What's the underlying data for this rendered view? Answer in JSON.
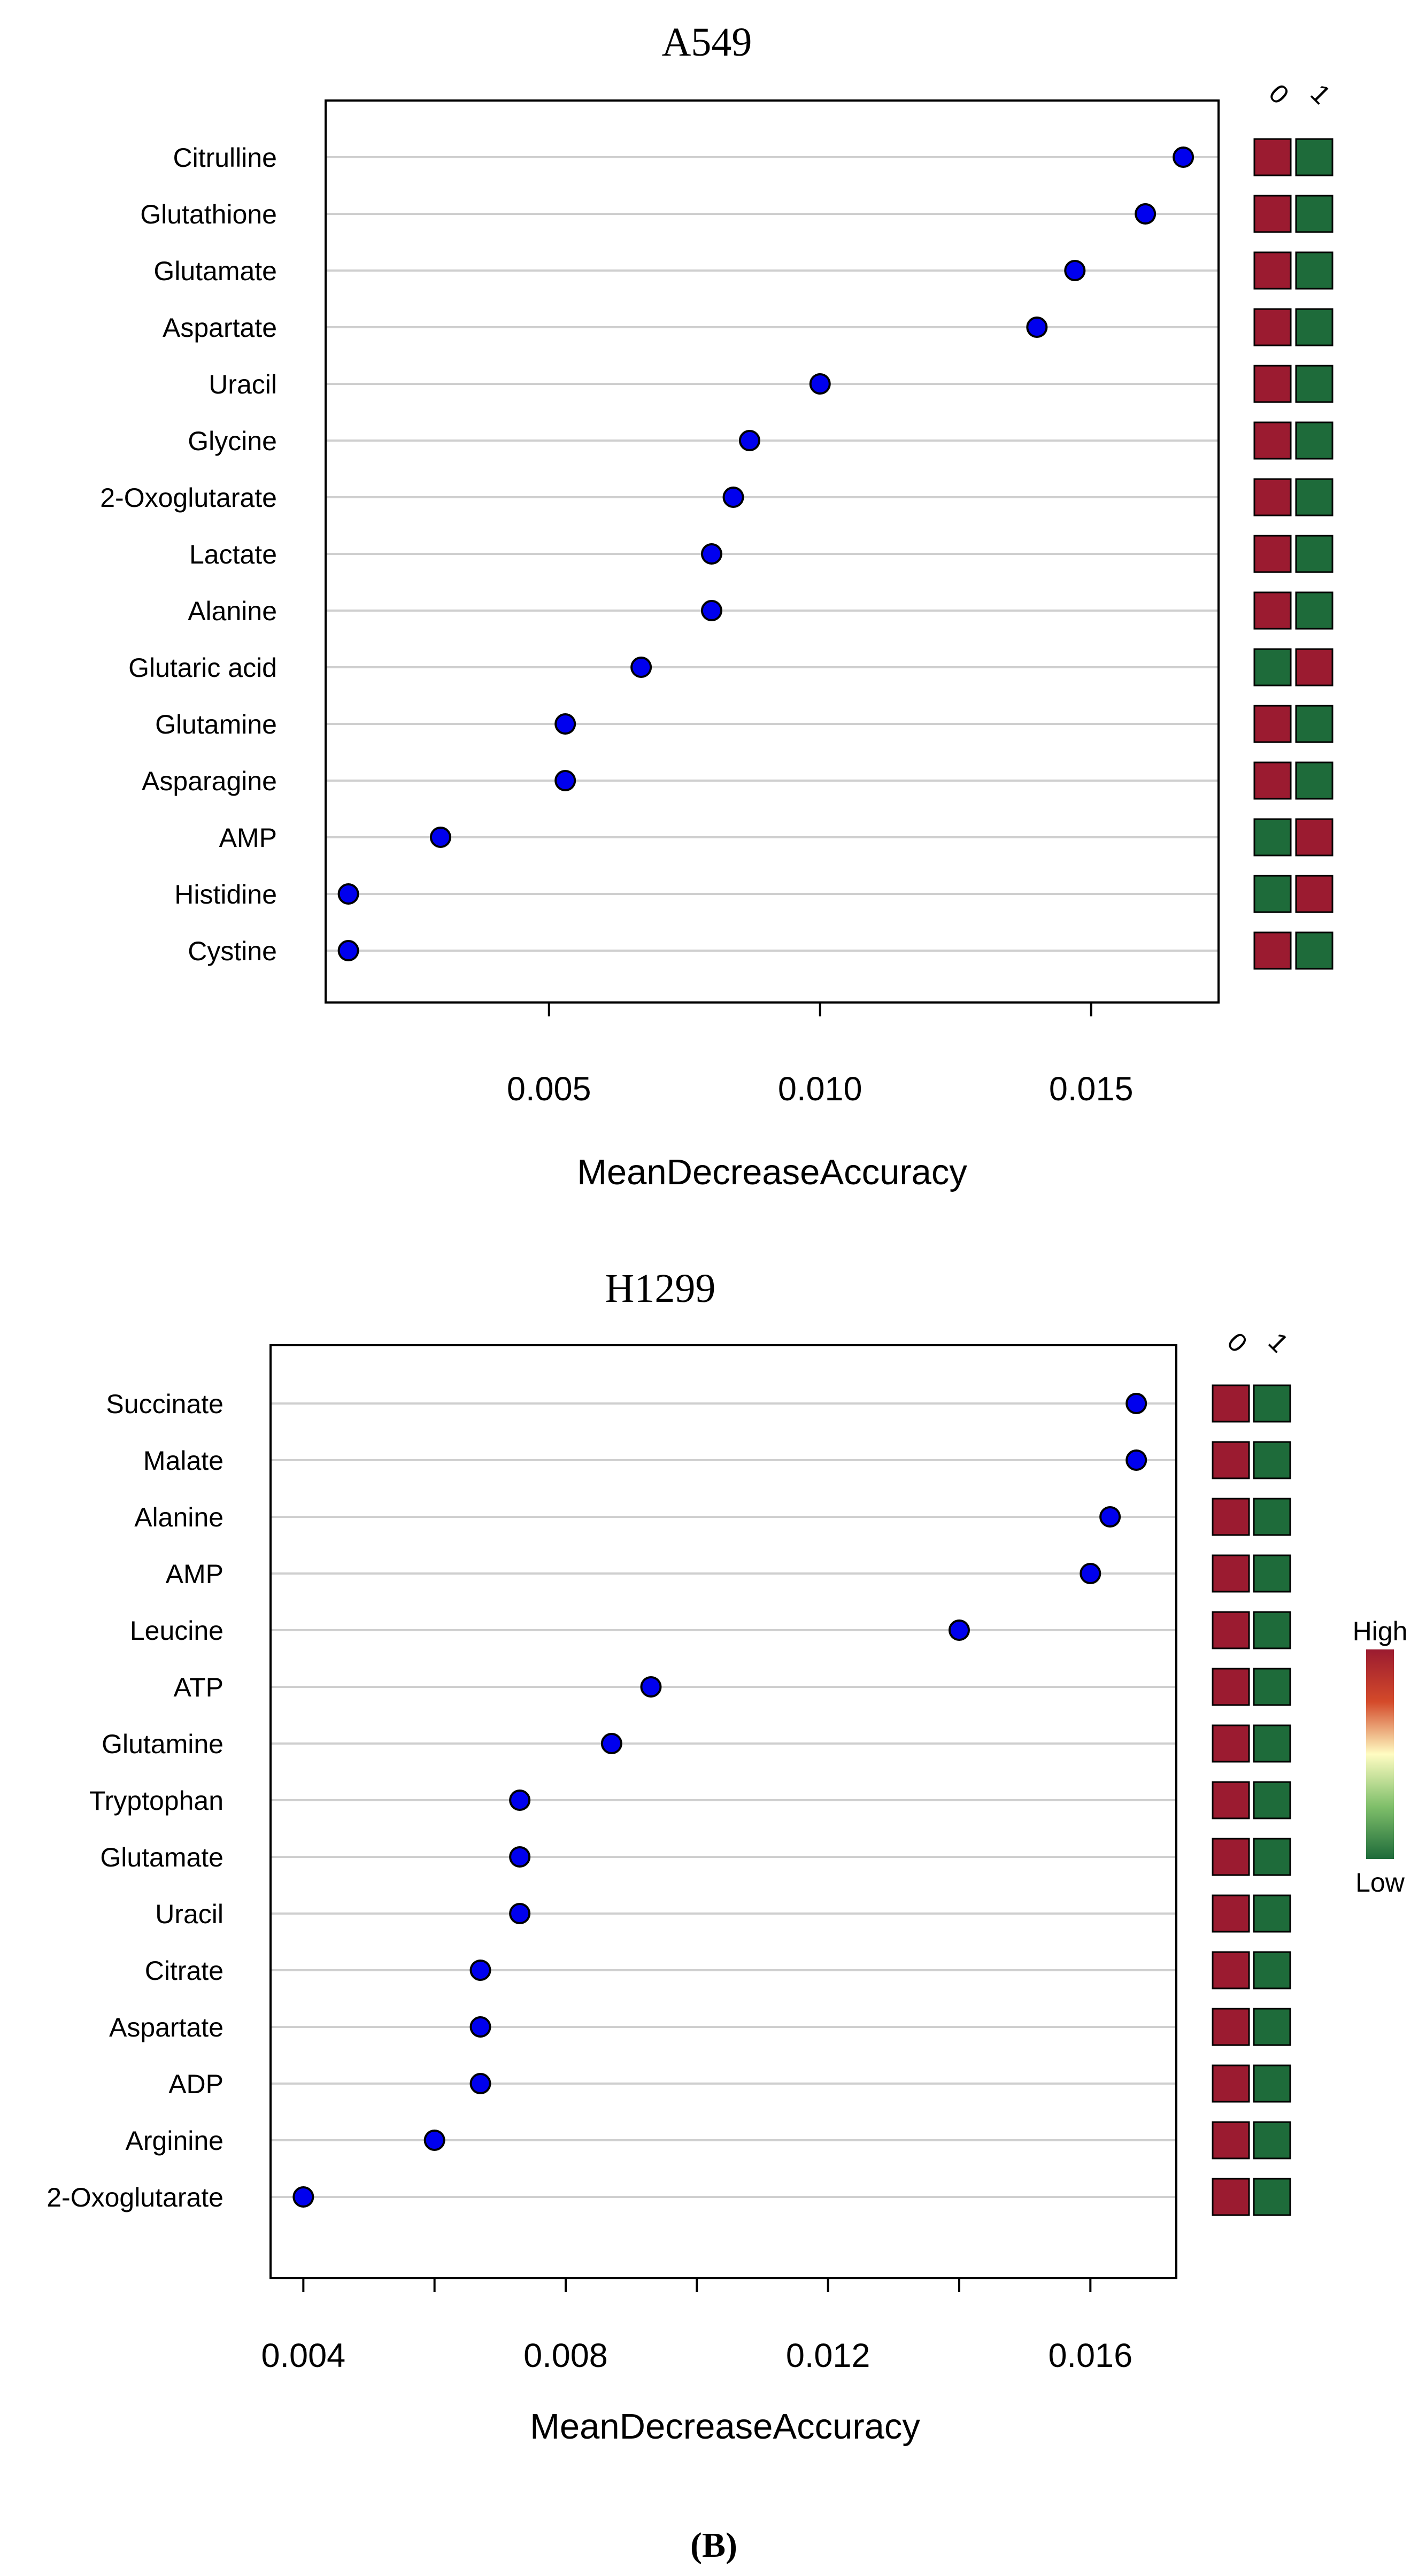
{
  "colors": {
    "high": "#9b1b30",
    "low": "#1e6b3a",
    "dot": "#0000ee",
    "grid": "#cfcfcf"
  },
  "chart_data": [
    {
      "type": "scatter",
      "title": "A549",
      "xlabel": "MeanDecreaseAccuracy",
      "ylabel": "",
      "xlim": [
        0.00088,
        0.01735
      ],
      "xticks": [
        0.005,
        0.01,
        0.015
      ],
      "xtick_labels": [
        "0.005",
        "0.010",
        "0.015"
      ],
      "class_labels": [
        "0",
        "1"
      ],
      "categories": [
        "Citrulline",
        "Glutathione",
        "Glutamate",
        "Aspartate",
        "Uracil",
        "Glycine",
        "2-Oxoglutarate",
        "Lactate",
        "Alanine",
        "Glutaric acid",
        "Glutamine",
        "Asparagine",
        "AMP",
        "Histidine",
        "Cystine"
      ],
      "values": [
        0.0167,
        0.016,
        0.0147,
        0.014,
        0.01,
        0.0087,
        0.0084,
        0.008,
        0.008,
        0.0067,
        0.0053,
        0.0053,
        0.003,
        0.0013,
        0.0013
      ],
      "heatmap": [
        [
          "high",
          "low"
        ],
        [
          "high",
          "low"
        ],
        [
          "high",
          "low"
        ],
        [
          "high",
          "low"
        ],
        [
          "high",
          "low"
        ],
        [
          "high",
          "low"
        ],
        [
          "high",
          "low"
        ],
        [
          "high",
          "low"
        ],
        [
          "high",
          "low"
        ],
        [
          "low",
          "high"
        ],
        [
          "high",
          "low"
        ],
        [
          "high",
          "low"
        ],
        [
          "low",
          "high"
        ],
        [
          "low",
          "high"
        ],
        [
          "high",
          "low"
        ]
      ],
      "grid": true
    },
    {
      "type": "scatter",
      "title": "H1299",
      "xlabel": "MeanDecreaseAccuracy",
      "ylabel": "",
      "xlim": [
        0.0035,
        0.01731
      ],
      "xticks": [
        0.004,
        0.006,
        0.008,
        0.01,
        0.012,
        0.014,
        0.016
      ],
      "xtick_labels": [
        "0.004",
        "",
        "0.008",
        "",
        "0.012",
        "",
        "0.016"
      ],
      "class_labels": [
        "0",
        "1"
      ],
      "categories": [
        "Succinate",
        "Malate",
        "Alanine",
        "AMP",
        "Leucine",
        "ATP",
        "Glutamine",
        "Tryptophan",
        "Glutamate",
        "Uracil",
        "Citrate",
        "Aspartate",
        "ADP",
        "Arginine",
        "2-Oxoglutarate"
      ],
      "values": [
        0.0167,
        0.0167,
        0.0163,
        0.016,
        0.014,
        0.0093,
        0.0087,
        0.0073,
        0.0073,
        0.0073,
        0.0067,
        0.0067,
        0.0067,
        0.006,
        0.004
      ],
      "heatmap": [
        [
          "high",
          "low"
        ],
        [
          "high",
          "low"
        ],
        [
          "high",
          "low"
        ],
        [
          "high",
          "low"
        ],
        [
          "high",
          "low"
        ],
        [
          "high",
          "low"
        ],
        [
          "high",
          "low"
        ],
        [
          "high",
          "low"
        ],
        [
          "high",
          "low"
        ],
        [
          "high",
          "low"
        ],
        [
          "high",
          "low"
        ],
        [
          "high",
          "low"
        ],
        [
          "high",
          "low"
        ],
        [
          "high",
          "low"
        ],
        [
          "high",
          "low"
        ]
      ],
      "grid": true
    }
  ],
  "legend": {
    "high_label": "High",
    "low_label": "Low"
  },
  "footer_label": "(B)"
}
